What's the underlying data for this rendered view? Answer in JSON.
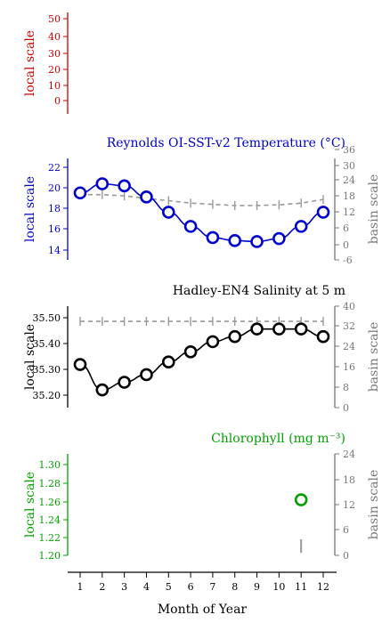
{
  "x_axis": {
    "label": "Month of Year",
    "ticks": [
      "1",
      "2",
      "3",
      "4",
      "5",
      "6",
      "7",
      "8",
      "9",
      "10",
      "11",
      "12"
    ]
  },
  "chart_data": [
    {
      "type": "line",
      "title": "",
      "color": "#cc0000",
      "ylabel": "local scale",
      "ylim": [
        -8,
        55
      ],
      "yticks": [
        "0",
        "10",
        "20",
        "30",
        "40",
        "50"
      ],
      "series": []
    },
    {
      "type": "line",
      "title": "Reynolds OI-SST-v2 Temperature (°C)",
      "color": "#0000cc",
      "ylabel": "local scale",
      "ylim": [
        13,
        23
      ],
      "yticks": [
        "14",
        "16",
        "18",
        "20",
        "22"
      ],
      "ylabel_right": "basin scale",
      "ylim_right": [
        -6,
        36
      ],
      "yticks_right": [
        "-6",
        "0",
        "6",
        "12",
        "18",
        "24",
        "30",
        "36"
      ],
      "x": [
        1,
        2,
        3,
        4,
        5,
        6,
        7,
        8,
        9,
        10,
        11,
        12
      ],
      "series": [
        {
          "values": [
            19.6,
            20.5,
            20.3,
            19.2,
            17.7,
            16.3,
            15.2,
            14.9,
            14.8,
            15.1,
            16.3,
            17.7
          ]
        }
      ],
      "basin_series": {
        "color": "#999999",
        "values": [
          21.0,
          21.0,
          20.5,
          19.5,
          18.5,
          17.5,
          17.0,
          16.5,
          16.5,
          16.8,
          17.5,
          19.0
        ]
      }
    },
    {
      "type": "line",
      "title": "Hadley-EN4 Salinity at 5 m",
      "color": "#000000",
      "ylabel": "local scale",
      "ylim": [
        35.16,
        35.56
      ],
      "yticks": [
        "35.20",
        "35.30",
        "35.40",
        "35.50"
      ],
      "ylabel_right": "basin scale",
      "ylim_right": [
        0,
        40
      ],
      "yticks_right": [
        "0",
        "8",
        "16",
        "24",
        "32",
        "40"
      ],
      "x": [
        1,
        2,
        3,
        4,
        5,
        6,
        7,
        8,
        9,
        10,
        11,
        12
      ],
      "series": [
        {
          "values": [
            35.33,
            35.23,
            35.26,
            35.29,
            35.34,
            35.38,
            35.42,
            35.44,
            35.47,
            35.47,
            35.47,
            35.44
          ]
        }
      ],
      "basin_series": {
        "color": "#999999",
        "values": [
          35.5,
          35.5,
          35.5,
          35.5,
          35.5,
          35.5,
          35.5,
          35.5,
          35.5,
          35.5,
          35.5,
          35.5
        ]
      }
    },
    {
      "type": "scatter",
      "title": "Chlorophyll (mg m⁻³)",
      "color": "#00a000",
      "ylabel": "local scale",
      "ylim": [
        1.195,
        1.31
      ],
      "yticks": [
        "1.20",
        "1.22",
        "1.24",
        "1.26",
        "1.28",
        "1.30"
      ],
      "ylabel_right": "basin scale",
      "ylim_right": [
        0,
        24
      ],
      "yticks_right": [
        "0",
        "6",
        "12",
        "18",
        "24"
      ],
      "x": [
        11
      ],
      "series": [
        {
          "values": [
            1.258
          ]
        }
      ],
      "basin_series": {
        "color": "#999999",
        "x": [
          11
        ],
        "values": [
          2.2
        ],
        "halfrange": 1.6
      }
    }
  ]
}
